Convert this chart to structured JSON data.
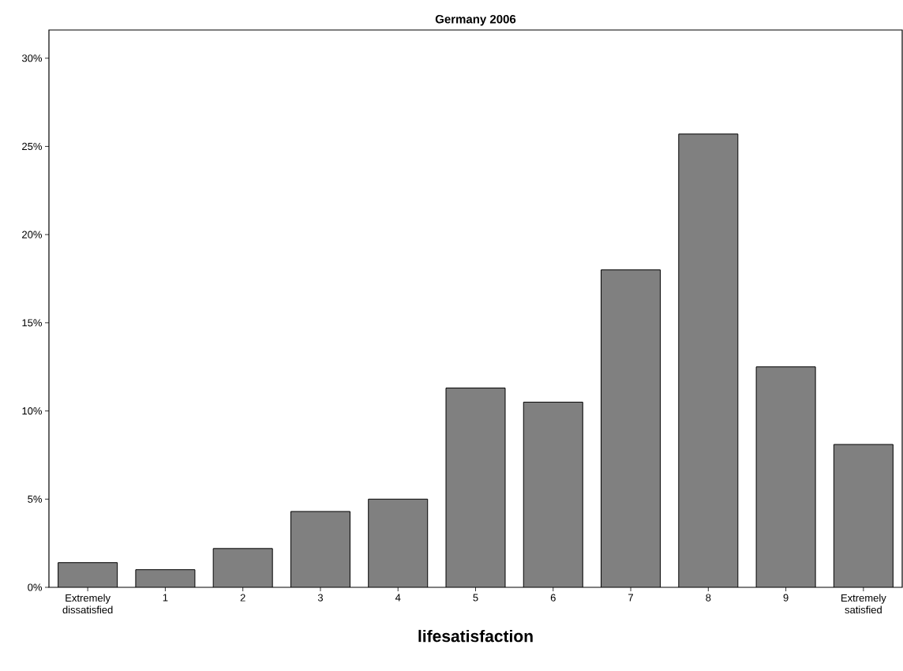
{
  "chart_data": {
    "type": "bar",
    "title": "Germany 2006",
    "xlabel": "lifesatisfaction",
    "categories": [
      "Extremely dissatisfied",
      "1",
      "2",
      "3",
      "4",
      "5",
      "6",
      "7",
      "8",
      "9",
      "Extremely satisfied"
    ],
    "values": [
      1.4,
      1.0,
      2.2,
      4.3,
      5.0,
      11.3,
      10.5,
      18.0,
      25.7,
      12.5,
      8.1
    ],
    "color": "#808080",
    "ylim": [
      0,
      31.6
    ],
    "yticks": [
      {
        "value": 0,
        "label": "0%"
      },
      {
        "value": 5,
        "label": "5%"
      },
      {
        "value": 10,
        "label": "10%"
      },
      {
        "value": 15,
        "label": "15%"
      },
      {
        "value": 20,
        "label": "20%"
      },
      {
        "value": 25,
        "label": "25%"
      },
      {
        "value": 30,
        "label": "30%"
      }
    ]
  }
}
